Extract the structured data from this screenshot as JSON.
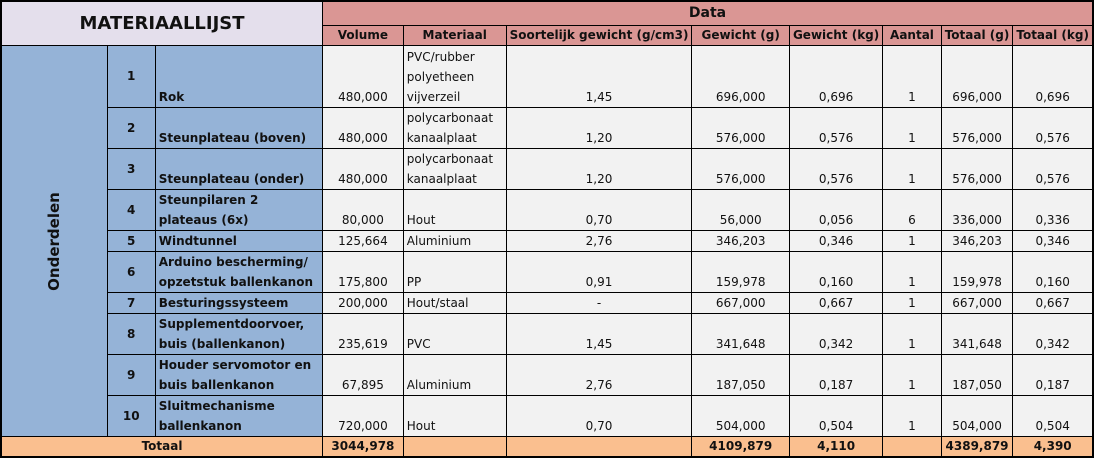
{
  "title": "MATERIAALLIJST",
  "data_header": "Data",
  "side_label": "Onderdelen",
  "columns": [
    "Volume",
    "Materiaal",
    "Soortelijk gewicht (g/cm3)",
    "Gewicht (g)",
    "Gewicht (kg)",
    "Aantal",
    "Totaal (g)",
    "Totaal (kg)"
  ],
  "rows": [
    {
      "nr": "1",
      "name": "Rok",
      "volume": "480,000",
      "material": "PVC/rubber polyetheen vijverzeil",
      "density": "1,45",
      "weight_g": "696,000",
      "weight_kg": "0,696",
      "count": "1",
      "total_g": "696,000",
      "total_kg": "0,696"
    },
    {
      "nr": "2",
      "name": "Steunplateau (boven)",
      "volume": "480,000",
      "material": "polycarbonaat kanaalplaat",
      "density": "1,20",
      "weight_g": "576,000",
      "weight_kg": "0,576",
      "count": "1",
      "total_g": "576,000",
      "total_kg": "0,576"
    },
    {
      "nr": "3",
      "name": "Steunplateau (onder)",
      "volume": "480,000",
      "material": "polycarbonaat kanaalplaat",
      "density": "1,20",
      "weight_g": "576,000",
      "weight_kg": "0,576",
      "count": "1",
      "total_g": "576,000",
      "total_kg": "0,576"
    },
    {
      "nr": "4",
      "name": "Steunpilaren 2 plateaus (6x)",
      "volume": "80,000",
      "material": "Hout",
      "density": "0,70",
      "weight_g": "56,000",
      "weight_kg": "0,056",
      "count": "6",
      "total_g": "336,000",
      "total_kg": "0,336"
    },
    {
      "nr": "5",
      "name": "Windtunnel",
      "volume": "125,664",
      "material": "Aluminium",
      "density": "2,76",
      "weight_g": "346,203",
      "weight_kg": "0,346",
      "count": "1",
      "total_g": "346,203",
      "total_kg": "0,346"
    },
    {
      "nr": "6",
      "name": "Arduino bescherming/ opzetstuk ballenkanon",
      "volume": "175,800",
      "material": "PP",
      "density": "0,91",
      "weight_g": "159,978",
      "weight_kg": "0,160",
      "count": "1",
      "total_g": "159,978",
      "total_kg": "0,160"
    },
    {
      "nr": "7",
      "name": "Besturingssysteem",
      "volume": "200,000",
      "material": "Hout/staal",
      "density": "-",
      "weight_g": "667,000",
      "weight_kg": "0,667",
      "count": "1",
      "total_g": "667,000",
      "total_kg": "0,667"
    },
    {
      "nr": "8",
      "name": "Supplementdoorvoer, buis (ballenkanon)",
      "volume": "235,619",
      "material": "PVC",
      "density": "1,45",
      "weight_g": "341,648",
      "weight_kg": "0,342",
      "count": "1",
      "total_g": "341,648",
      "total_kg": "0,342"
    },
    {
      "nr": "9",
      "name": "Houder servomotor en buis ballenkanon",
      "volume": "67,895",
      "material": "Aluminium",
      "density": "2,76",
      "weight_g": "187,050",
      "weight_kg": "0,187",
      "count": "1",
      "total_g": "187,050",
      "total_kg": "0,187"
    },
    {
      "nr": "10",
      "name": "Sluitmechanisme ballenkanon",
      "volume": "720,000",
      "material": "Hout",
      "density": "0,70",
      "weight_g": "504,000",
      "weight_kg": "0,504",
      "count": "1",
      "total_g": "504,000",
      "total_kg": "0,504"
    }
  ],
  "totals": {
    "label": "Totaal",
    "volume": "3044,978",
    "material": "",
    "density": "",
    "weight_g": "4109,879",
    "weight_kg": "4,110",
    "count": "",
    "total_g": "4389,879",
    "total_kg": "4,390"
  },
  "colors": {
    "title_bg": "#e4dfec",
    "header_bg": "#da9694",
    "part_bg": "#95b3d7",
    "cell_bg": "#f2f2f2",
    "total_bg": "#fabf8f"
  }
}
